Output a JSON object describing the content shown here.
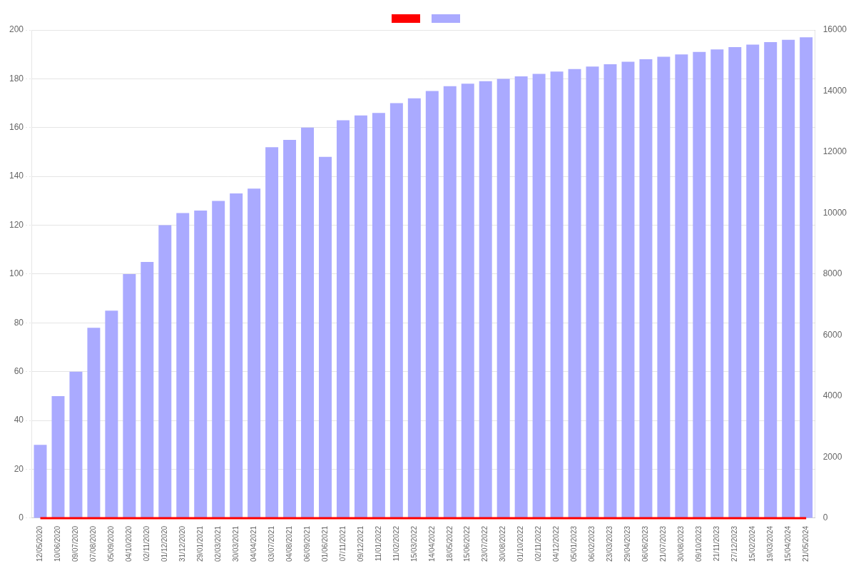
{
  "chart_data": {
    "type": "bar",
    "categories": [
      "12/05/2020",
      "10/06/2020",
      "09/07/2020",
      "07/08/2020",
      "05/09/2020",
      "04/10/2020",
      "02/11/2020",
      "01/12/2020",
      "31/12/2020",
      "29/01/2021",
      "02/03/2021",
      "30/03/2021",
      "04/04/2021",
      "03/07/2021",
      "04/08/2021",
      "06/09/2021",
      "01/06/2021",
      "07/11/2021",
      "09/12/2021",
      "11/01/2022",
      "11/02/2022",
      "15/03/2022",
      "14/04/2022",
      "18/05/2022",
      "15/06/2022",
      "23/07/2022",
      "30/08/2022",
      "01/10/2022",
      "02/11/2022",
      "04/12/2022",
      "05/01/2023",
      "06/02/2023",
      "23/03/2023",
      "29/04/2023",
      "06/06/2023",
      "21/07/2023",
      "30/08/2023",
      "09/10/2023",
      "21/11/2023",
      "27/12/2023",
      "15/02/2024",
      "19/03/2024",
      "15/04/2024",
      "21/05/2024"
    ],
    "series": [
      {
        "type": "line",
        "color": "#ff0000",
        "values": [
          0,
          0,
          0,
          0,
          0,
          0,
          0,
          0,
          0,
          0,
          0,
          0,
          0,
          0,
          0,
          0,
          0,
          0,
          0,
          0,
          0,
          0,
          0,
          0,
          0,
          0,
          0,
          0,
          0,
          0,
          0,
          0,
          0,
          0,
          0,
          0,
          0,
          0,
          0,
          0,
          0,
          0,
          0,
          0
        ]
      },
      {
        "type": "bar",
        "color": "#aaaaff",
        "values": [
          30,
          50,
          60,
          78,
          85,
          100,
          105,
          120,
          125,
          126,
          130,
          133,
          135,
          152,
          155,
          160,
          148,
          163,
          165,
          166,
          170,
          172,
          175,
          177,
          178,
          179,
          180,
          181,
          182,
          183,
          184,
          185,
          186,
          187,
          188,
          189,
          190,
          191,
          192,
          193,
          194,
          195,
          196,
          197
        ]
      }
    ],
    "ylim": [
      0,
      200
    ],
    "yticks": [
      0,
      20,
      40,
      60,
      80,
      100,
      120,
      140,
      160,
      180,
      200
    ],
    "y2lim": [
      0,
      16000
    ],
    "y2ticks": [
      0,
      2000,
      4000,
      6000,
      8000,
      10000,
      12000,
      14000,
      16000
    ],
    "grid": true,
    "legend": "top"
  }
}
